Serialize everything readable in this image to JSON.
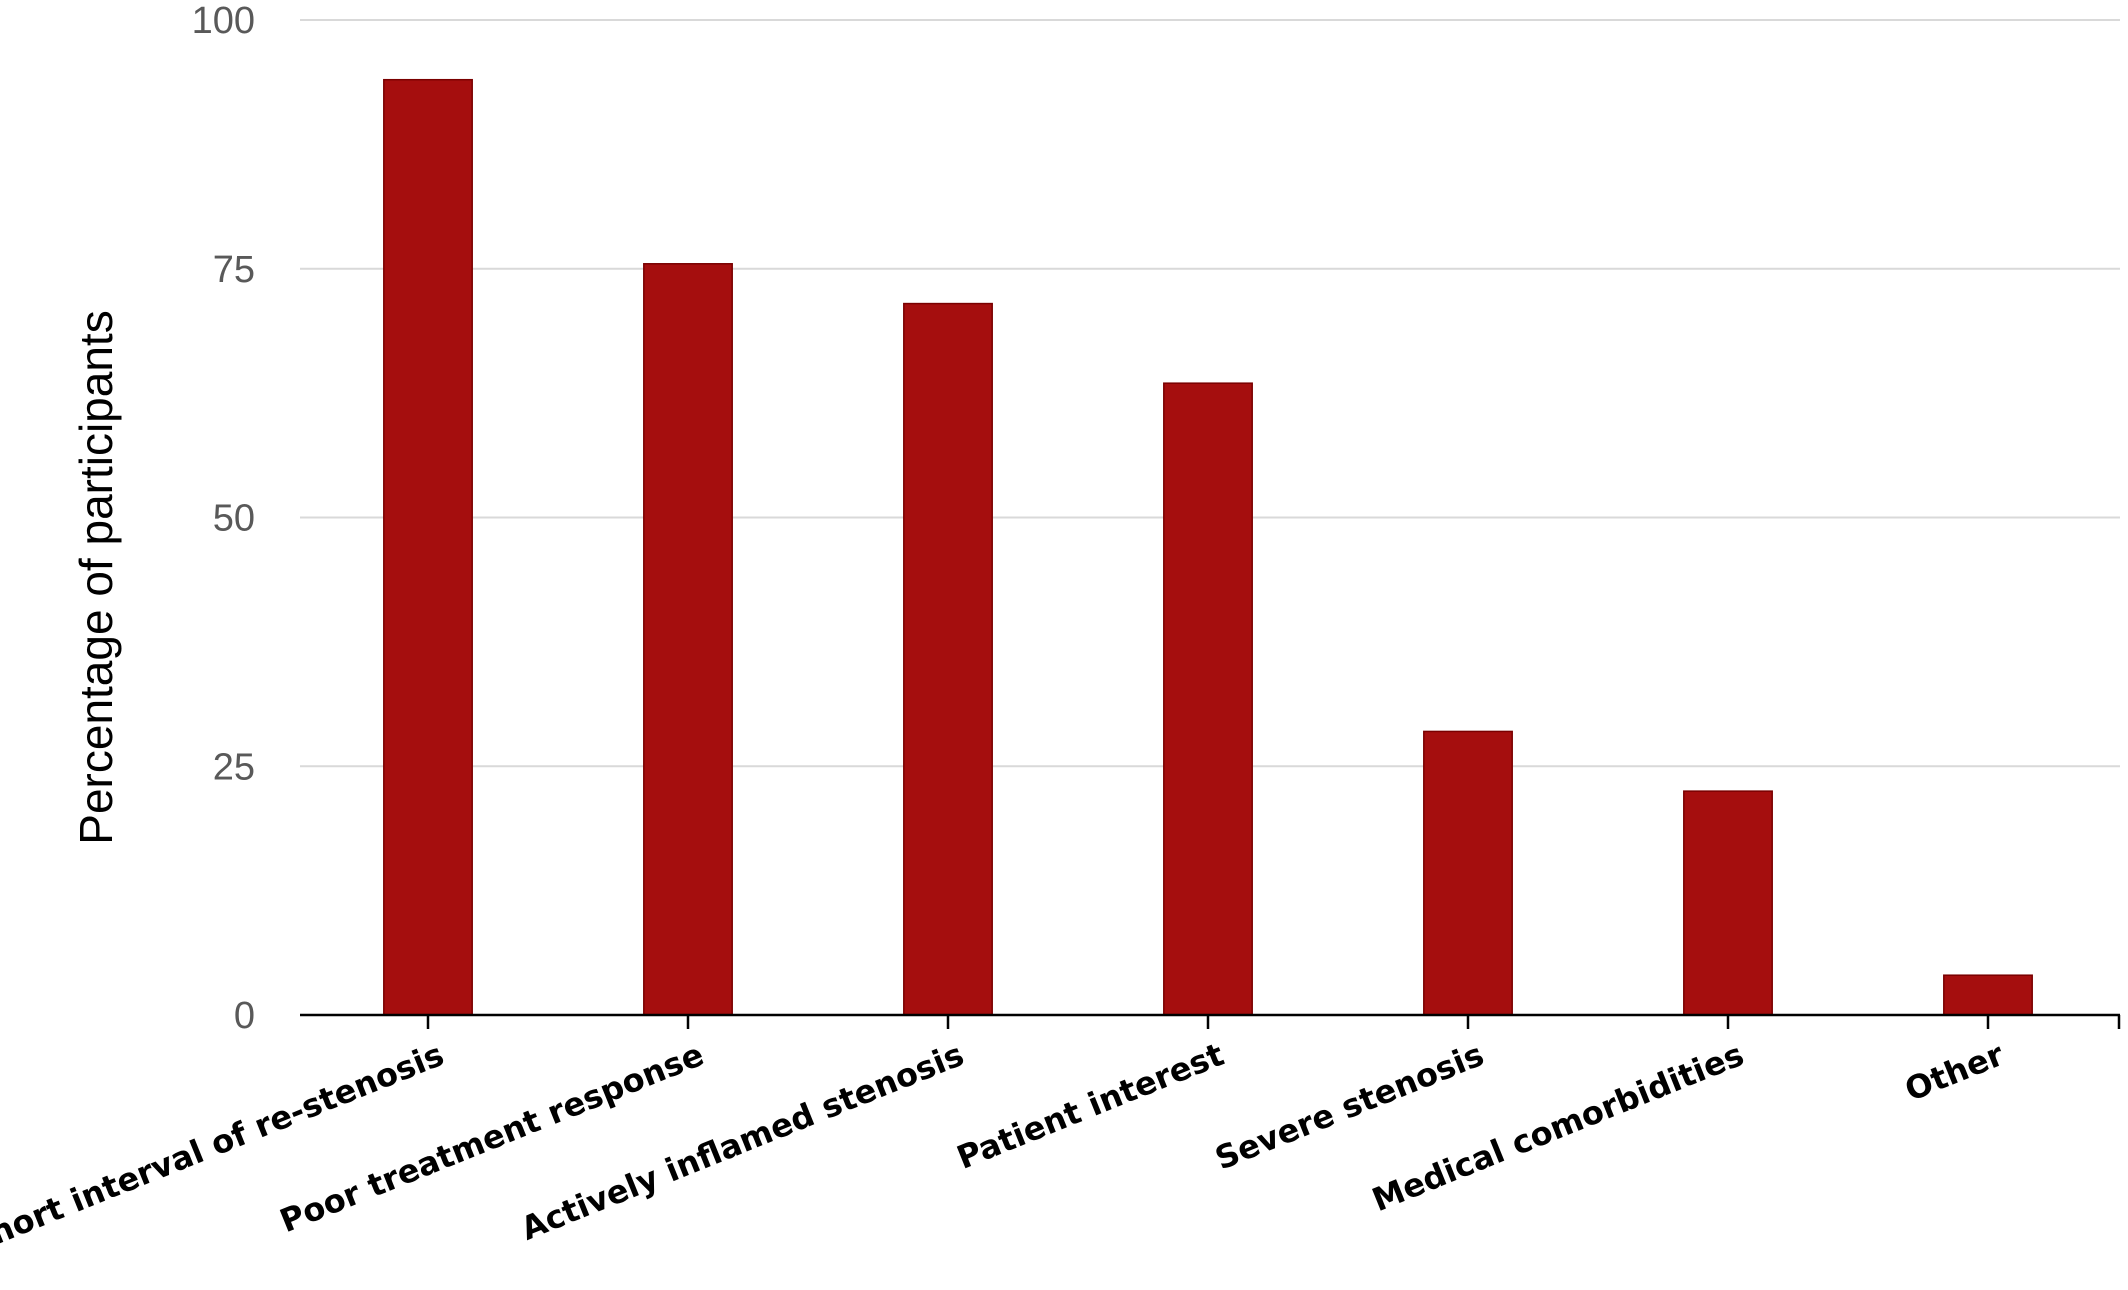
{
  "chart_data": {
    "type": "bar",
    "title": "",
    "xlabel": "",
    "ylabel": "Percentage of participants",
    "ylim": [
      0,
      100
    ],
    "yticks": [
      0,
      25,
      50,
      75,
      100
    ],
    "grid": true,
    "bar_color": "#a50e0e",
    "categories": [
      "Short interval of re-stenosis",
      "Poor treatment response",
      "Actively inflamed stenosis",
      "Patient interest",
      "Severe stenosis",
      "Medical comorbidities",
      "Other"
    ],
    "values": [
      94,
      75.5,
      71.5,
      63.5,
      28.5,
      22.5,
      4
    ]
  }
}
